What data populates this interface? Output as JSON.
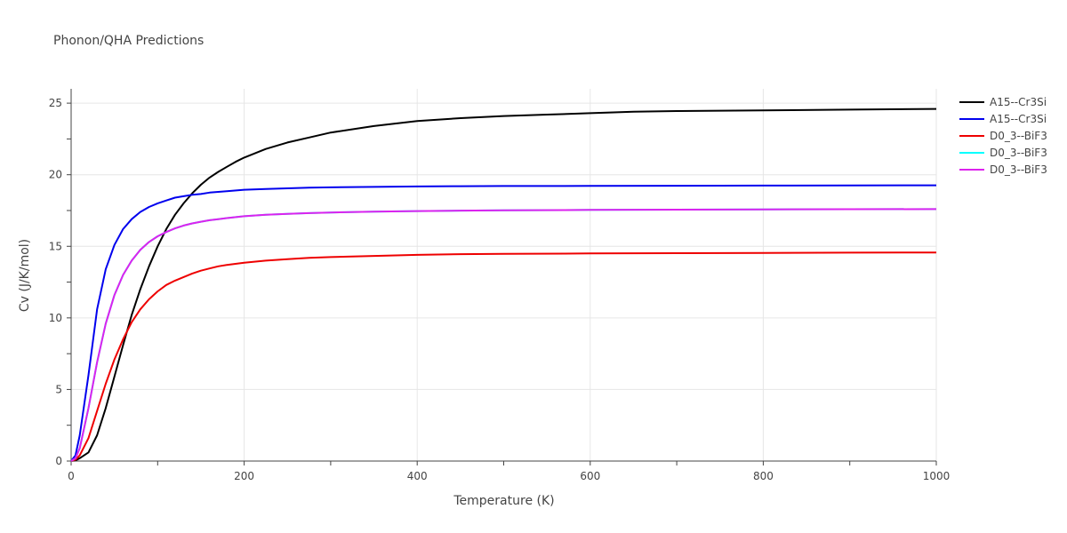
{
  "chart_data": {
    "type": "line",
    "title": "Phonon/QHA Predictions",
    "xlabel": "Temperature (K)",
    "ylabel": "Cv (J/K/mol)",
    "xlim": [
      0,
      1000
    ],
    "ylim": [
      0,
      26
    ],
    "x_ticks": [
      0,
      200,
      400,
      600,
      800,
      1000
    ],
    "x_tick_labels": [
      "0",
      "200",
      "400",
      "600",
      "800",
      "1000"
    ],
    "y_ticks": [
      0,
      5,
      10,
      15,
      20,
      25
    ],
    "y_tick_labels": [
      "0",
      "5",
      "10",
      "15",
      "20",
      "25"
    ],
    "grid": true,
    "legend_position": "top-right",
    "series": [
      {
        "name": "A15--Cr3Si",
        "color": "#000000",
        "x": [
          0,
          5,
          10,
          20,
          30,
          40,
          50,
          60,
          70,
          80,
          90,
          100,
          110,
          120,
          130,
          140,
          150,
          160,
          170,
          180,
          190,
          200,
          225,
          250,
          275,
          300,
          350,
          400,
          450,
          500,
          550,
          600,
          650,
          700,
          800,
          900,
          1000
        ],
        "values": [
          0,
          0.05,
          0.2,
          0.6,
          1.8,
          3.7,
          5.9,
          8.1,
          10.2,
          12.0,
          13.6,
          15.0,
          16.2,
          17.2,
          18.0,
          18.7,
          19.3,
          19.8,
          20.2,
          20.55,
          20.9,
          21.2,
          21.8,
          22.25,
          22.6,
          22.95,
          23.4,
          23.75,
          23.95,
          24.1,
          24.2,
          24.3,
          24.4,
          24.45,
          24.5,
          24.55,
          24.6
        ]
      },
      {
        "name": "A15--Cr3Si",
        "color": "#0000ee",
        "x": [
          0,
          5,
          10,
          20,
          30,
          40,
          50,
          60,
          70,
          80,
          90,
          100,
          110,
          120,
          130,
          140,
          150,
          160,
          170,
          180,
          200,
          225,
          250,
          275,
          300,
          350,
          400,
          450,
          500,
          600,
          700,
          800,
          900,
          1000
        ],
        "values": [
          0,
          0.4,
          1.8,
          6.0,
          10.6,
          13.4,
          15.1,
          16.2,
          16.9,
          17.4,
          17.75,
          18.0,
          18.2,
          18.4,
          18.5,
          18.6,
          18.65,
          18.75,
          18.8,
          18.85,
          18.95,
          19.0,
          19.05,
          19.1,
          19.12,
          19.15,
          19.18,
          19.2,
          19.21,
          19.22,
          19.23,
          19.24,
          19.25,
          19.26
        ]
      },
      {
        "name": "D0_3--BiF3",
        "color": "#ee0000",
        "x": [
          0,
          5,
          10,
          20,
          30,
          40,
          50,
          60,
          70,
          80,
          90,
          100,
          110,
          120,
          130,
          140,
          150,
          160,
          170,
          180,
          200,
          225,
          250,
          275,
          300,
          350,
          400,
          450,
          500,
          600,
          700,
          800,
          900,
          1000
        ],
        "values": [
          0,
          0.1,
          0.4,
          1.6,
          3.5,
          5.4,
          7.1,
          8.5,
          9.7,
          10.6,
          11.3,
          11.85,
          12.3,
          12.6,
          12.85,
          13.1,
          13.3,
          13.45,
          13.6,
          13.7,
          13.85,
          14.0,
          14.1,
          14.2,
          14.25,
          14.33,
          14.4,
          14.45,
          14.47,
          14.5,
          14.52,
          14.54,
          14.56,
          14.57
        ]
      },
      {
        "name": "D0_3--BiF3",
        "color": "#00ffff",
        "x": [
          0,
          5,
          10,
          20,
          30,
          40,
          50,
          60,
          70,
          80,
          90,
          100,
          110,
          120,
          130,
          140,
          150,
          160,
          170,
          180,
          200,
          225,
          250,
          275,
          300,
          350,
          400,
          450,
          500,
          600,
          700,
          800,
          900,
          1000
        ],
        "values": [
          0,
          0.2,
          0.9,
          3.7,
          6.9,
          9.6,
          11.6,
          13.0,
          14.0,
          14.75,
          15.3,
          15.7,
          16.0,
          16.25,
          16.45,
          16.6,
          16.72,
          16.82,
          16.9,
          16.97,
          17.1,
          17.2,
          17.27,
          17.32,
          17.36,
          17.42,
          17.46,
          17.49,
          17.51,
          17.54,
          17.56,
          17.58,
          17.59,
          17.6
        ]
      },
      {
        "name": "D0_3--BiF3",
        "color": "#dd22ee",
        "x": [
          0,
          5,
          10,
          20,
          30,
          40,
          50,
          60,
          70,
          80,
          90,
          100,
          110,
          120,
          130,
          140,
          150,
          160,
          170,
          180,
          200,
          225,
          250,
          275,
          300,
          350,
          400,
          450,
          500,
          600,
          700,
          800,
          900,
          1000
        ],
        "values": [
          0,
          0.2,
          0.9,
          3.7,
          6.9,
          9.6,
          11.6,
          13.0,
          14.0,
          14.75,
          15.3,
          15.7,
          16.0,
          16.25,
          16.45,
          16.6,
          16.72,
          16.82,
          16.9,
          16.97,
          17.1,
          17.2,
          17.27,
          17.32,
          17.36,
          17.42,
          17.46,
          17.49,
          17.51,
          17.54,
          17.56,
          17.58,
          17.59,
          17.6
        ]
      }
    ]
  }
}
